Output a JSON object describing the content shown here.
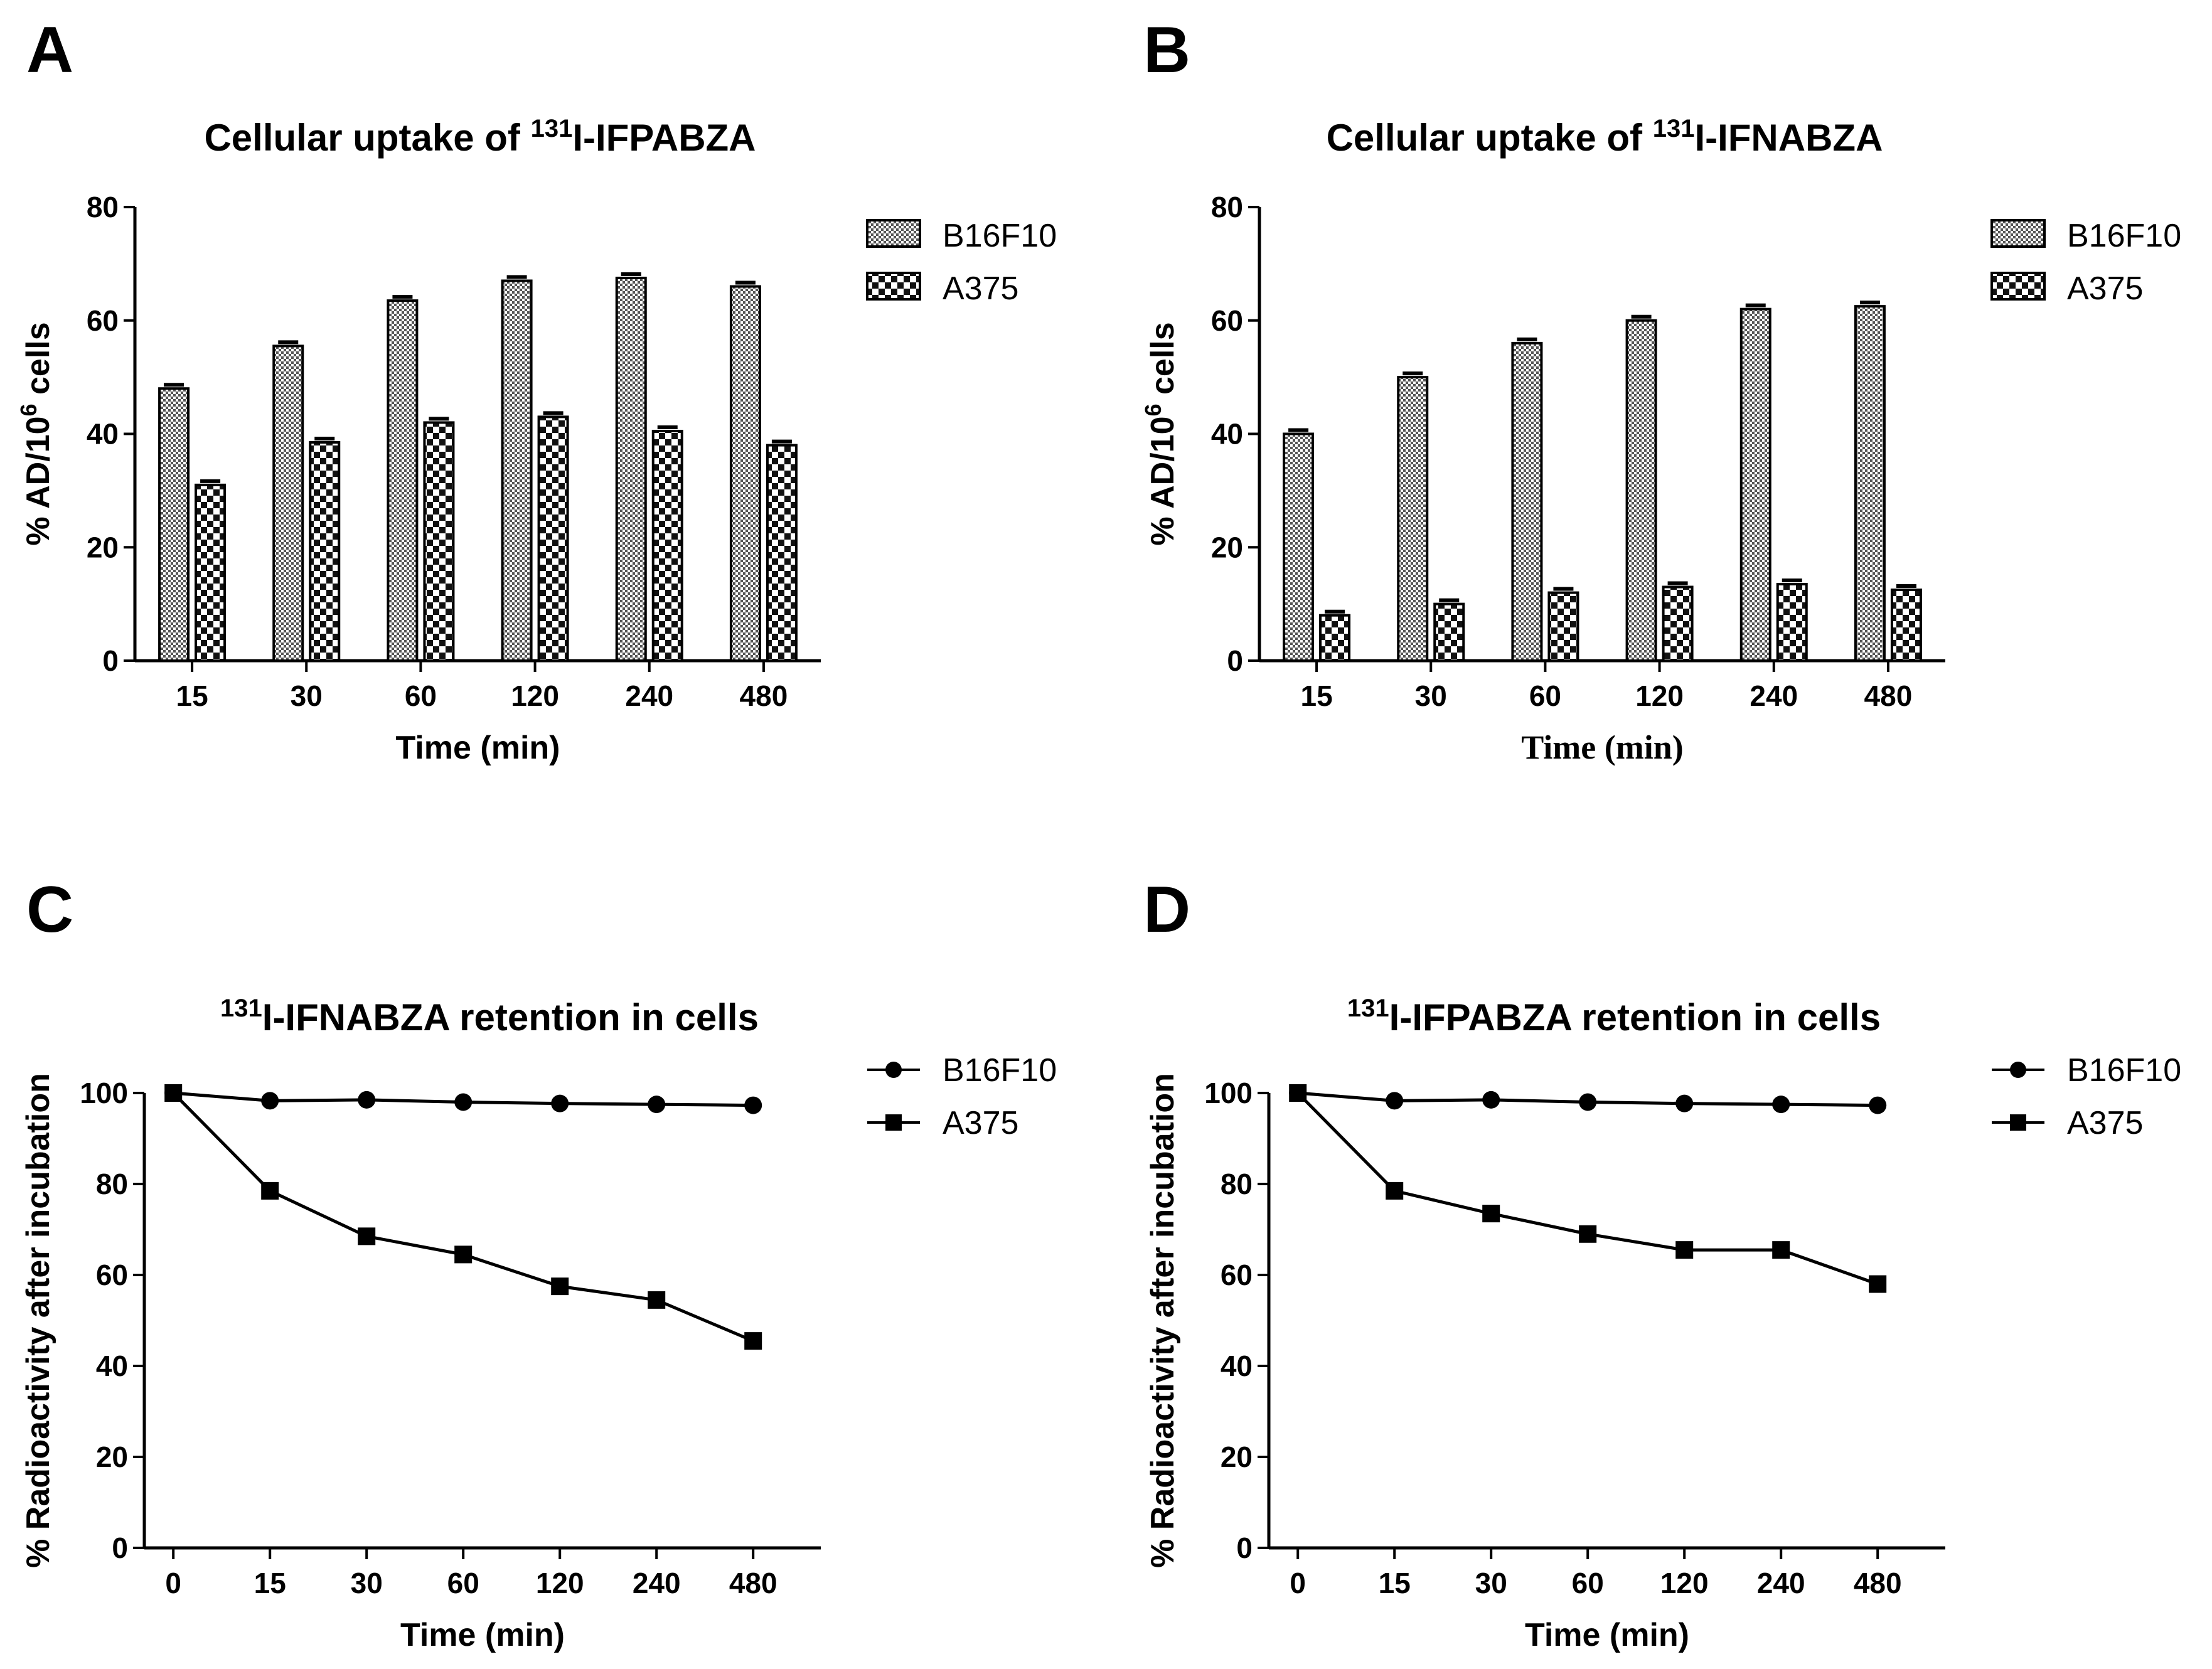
{
  "chart_data": [
    {
      "panel": "A",
      "type": "bar",
      "title_sup": "131",
      "title_pre": "Cellular uptake of ",
      "title_post": "I-IFPABZA",
      "ylabel_pre": "% AD/10",
      "ylabel_sup": "6",
      "ylabel_post": " cells",
      "xlabel": "Time (min)",
      "categories": [
        "15",
        "30",
        "60",
        "120",
        "240",
        "480"
      ],
      "ylim": [
        0,
        80
      ],
      "yticks": [
        "0",
        "20",
        "40",
        "60",
        "80"
      ],
      "series": [
        {
          "name": "B16F10",
          "values": [
            48,
            55.5,
            63.5,
            67,
            67.5,
            66
          ]
        },
        {
          "name": "A375",
          "values": [
            31,
            38.5,
            42,
            43,
            40.5,
            38
          ]
        }
      ]
    },
    {
      "panel": "B",
      "type": "bar",
      "title_sup": "131",
      "title_pre": "Cellular uptake of ",
      "title_post": "I-IFNABZA",
      "ylabel_pre": "% AD/10",
      "ylabel_sup": "6",
      "ylabel_post": " cells",
      "xlabel": "Time (min)",
      "categories": [
        "15",
        "30",
        "60",
        "120",
        "240",
        "480"
      ],
      "ylim": [
        0,
        80
      ],
      "yticks": [
        "0",
        "20",
        "40",
        "60",
        "80"
      ],
      "series": [
        {
          "name": "B16F10",
          "values": [
            40,
            50,
            56,
            60,
            62,
            62.5
          ]
        },
        {
          "name": "A375",
          "values": [
            8,
            10,
            12,
            13,
            13.5,
            12.5
          ]
        }
      ]
    },
    {
      "panel": "C",
      "type": "line",
      "title_sup": "131",
      "title_pre": "",
      "title_post": "I-IFNABZA retention in cells",
      "ylabel_pre": "% Radioactivity after incubation",
      "ylabel_sup": "",
      "ylabel_post": "",
      "xlabel": "Time (min)",
      "categories": [
        "0",
        "15",
        "30",
        "60",
        "120",
        "240",
        "480"
      ],
      "ylim": [
        0,
        100
      ],
      "yticks": [
        "0",
        "20",
        "40",
        "60",
        "80",
        "100"
      ],
      "series": [
        {
          "name": "B16F10",
          "marker": "circle",
          "values": [
            100,
            98.3,
            98.5,
            98,
            97.7,
            97.5,
            97.3
          ]
        },
        {
          "name": "A375",
          "marker": "square",
          "values": [
            100,
            78.5,
            68.5,
            64.5,
            57.5,
            54.5,
            45.5
          ]
        }
      ]
    },
    {
      "panel": "D",
      "type": "line",
      "title_sup": "131",
      "title_pre": "",
      "title_post": "I-IFPABZA retention in cells",
      "ylabel_pre": "% Radioactivity after incubation",
      "ylabel_sup": "",
      "ylabel_post": "",
      "xlabel": "Time (min)",
      "categories": [
        "0",
        "15",
        "30",
        "60",
        "120",
        "240",
        "480"
      ],
      "ylim": [
        0,
        100
      ],
      "yticks": [
        "0",
        "20",
        "40",
        "60",
        "80",
        "100"
      ],
      "series": [
        {
          "name": "B16F10",
          "marker": "circle",
          "values": [
            100,
            98.3,
            98.5,
            98,
            97.7,
            97.5,
            97.3
          ]
        },
        {
          "name": "A375",
          "marker": "square",
          "values": [
            100,
            78.5,
            73.5,
            69,
            65.5,
            65.5,
            58
          ]
        }
      ]
    }
  ]
}
